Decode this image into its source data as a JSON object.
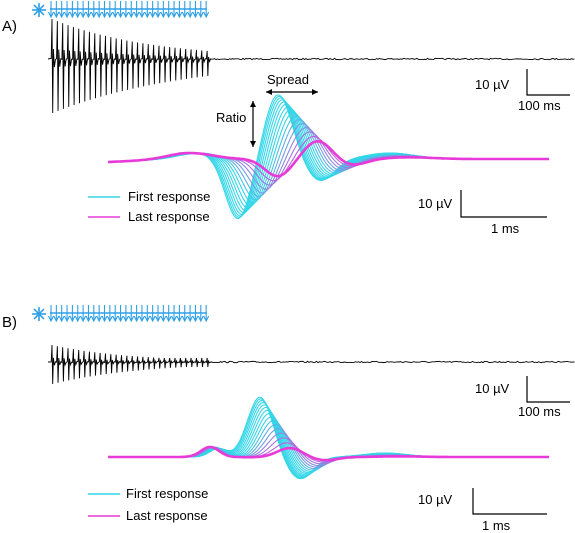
{
  "panels": [
    {
      "label": "A)",
      "top_scale": {
        "amplitude": "10 µV",
        "time": "100 ms"
      },
      "bottom_scale": {
        "amplitude": "10 µV",
        "time": "1 ms"
      },
      "annotations": {
        "spread": "Spread",
        "ratio": "Ratio"
      },
      "legend": {
        "first": "First response",
        "last": "Last response"
      }
    },
    {
      "label": "B)",
      "top_scale": {
        "amplitude": "10 µV",
        "time": "100 ms"
      },
      "bottom_scale": {
        "amplitude": "10 µV",
        "time": "1 ms"
      },
      "legend": {
        "first": "First response",
        "last": "Last response"
      }
    }
  ],
  "colors": {
    "first": "#33d6e8",
    "last": "#e83ad8",
    "stimulus": "#2f9fe8",
    "trace": "#000000"
  }
}
